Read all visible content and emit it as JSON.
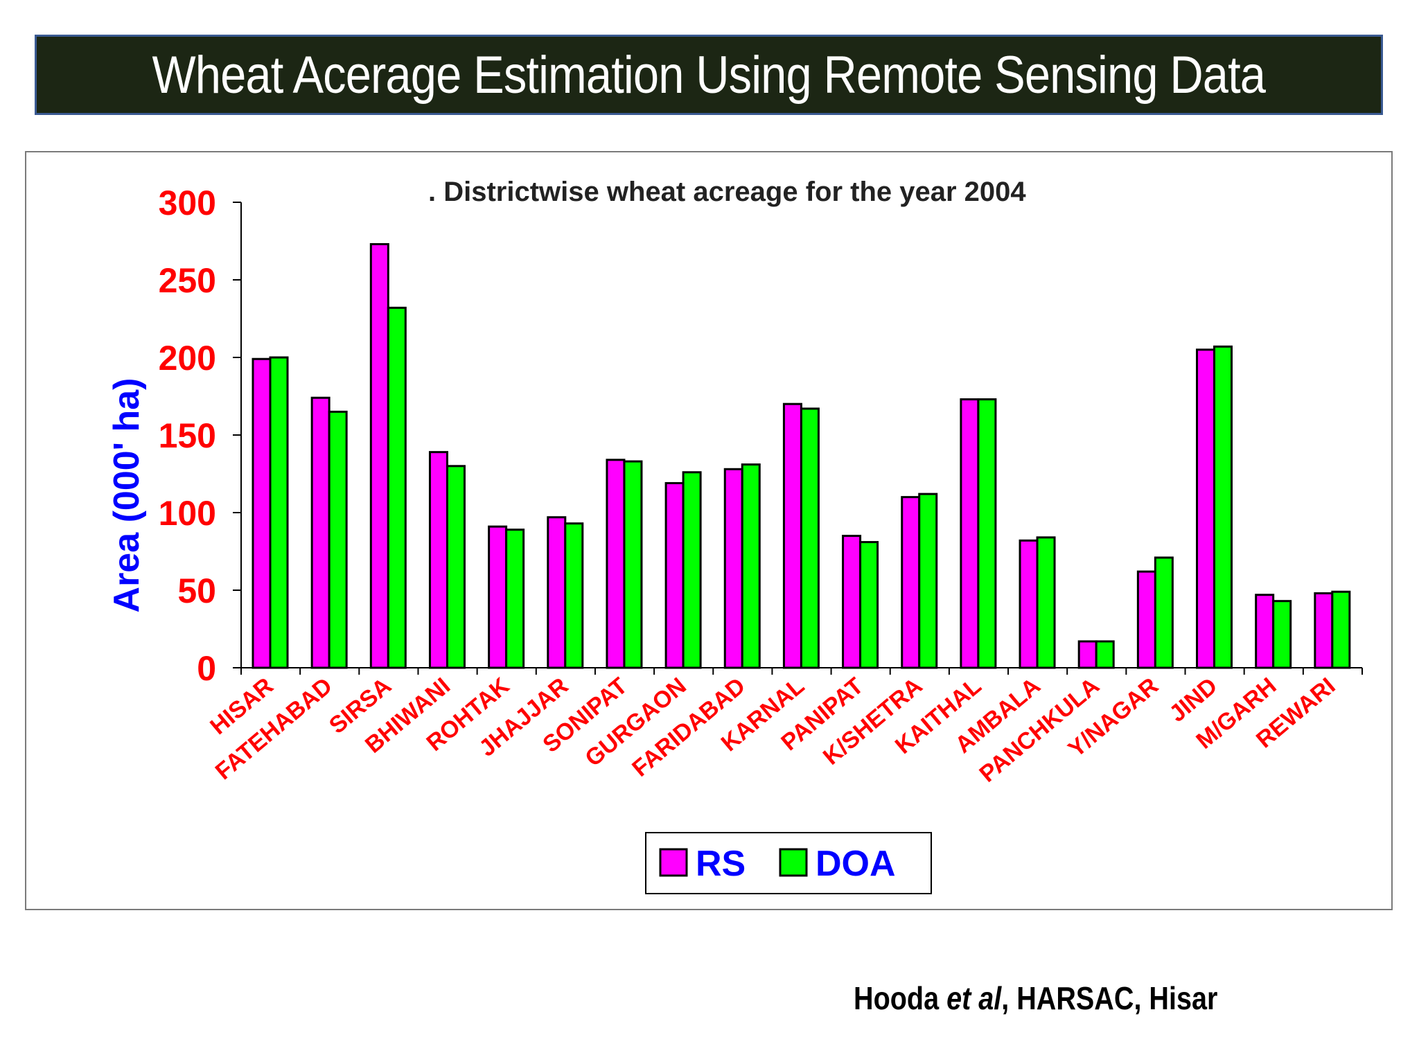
{
  "slide": {
    "title": "Wheat Acerage Estimation Using Remote Sensing Data",
    "credit": {
      "author": "Hooda",
      "etal": "et al",
      "affiliation": ", HARSAC, Hisar"
    }
  },
  "chart_data": {
    "type": "bar",
    "title": ". Districtwise wheat acreage for the year 2004",
    "xlabel": "",
    "ylabel": "Area (000' ha)",
    "ylim": [
      0,
      300
    ],
    "yticks": [
      0,
      50,
      100,
      150,
      200,
      250,
      300
    ],
    "categories": [
      "HISAR",
      "FATEHABAD",
      "SIRSA",
      "BHIWANI",
      "ROHTAK",
      "JHAJJAR",
      "SONIPAT",
      "GURGAON",
      "FARIDABAD",
      "KARNAL",
      "PANIPAT",
      "K/SHETRA",
      "KAITHAL",
      "AMBALA",
      "PANCHKULA",
      "Y/NAGAR",
      "JIND",
      "M/GARH",
      "REWARI"
    ],
    "series": [
      {
        "name": "RS",
        "color": "#ff00ff",
        "values": [
          199,
          174,
          273,
          139,
          91,
          97,
          134,
          119,
          128,
          170,
          85,
          110,
          173,
          82,
          17,
          62,
          205,
          47,
          48
        ]
      },
      {
        "name": "DOA",
        "color": "#00ff00",
        "values": [
          200,
          165,
          232,
          130,
          89,
          93,
          133,
          126,
          131,
          167,
          81,
          112,
          173,
          84,
          17,
          71,
          207,
          43,
          49
        ]
      }
    ],
    "legend_position": "bottom-center",
    "grid": false,
    "colors": {
      "tick_labels": "#ff0000",
      "ylabel": "#0000ff",
      "legend_text": "#0000ff"
    }
  }
}
